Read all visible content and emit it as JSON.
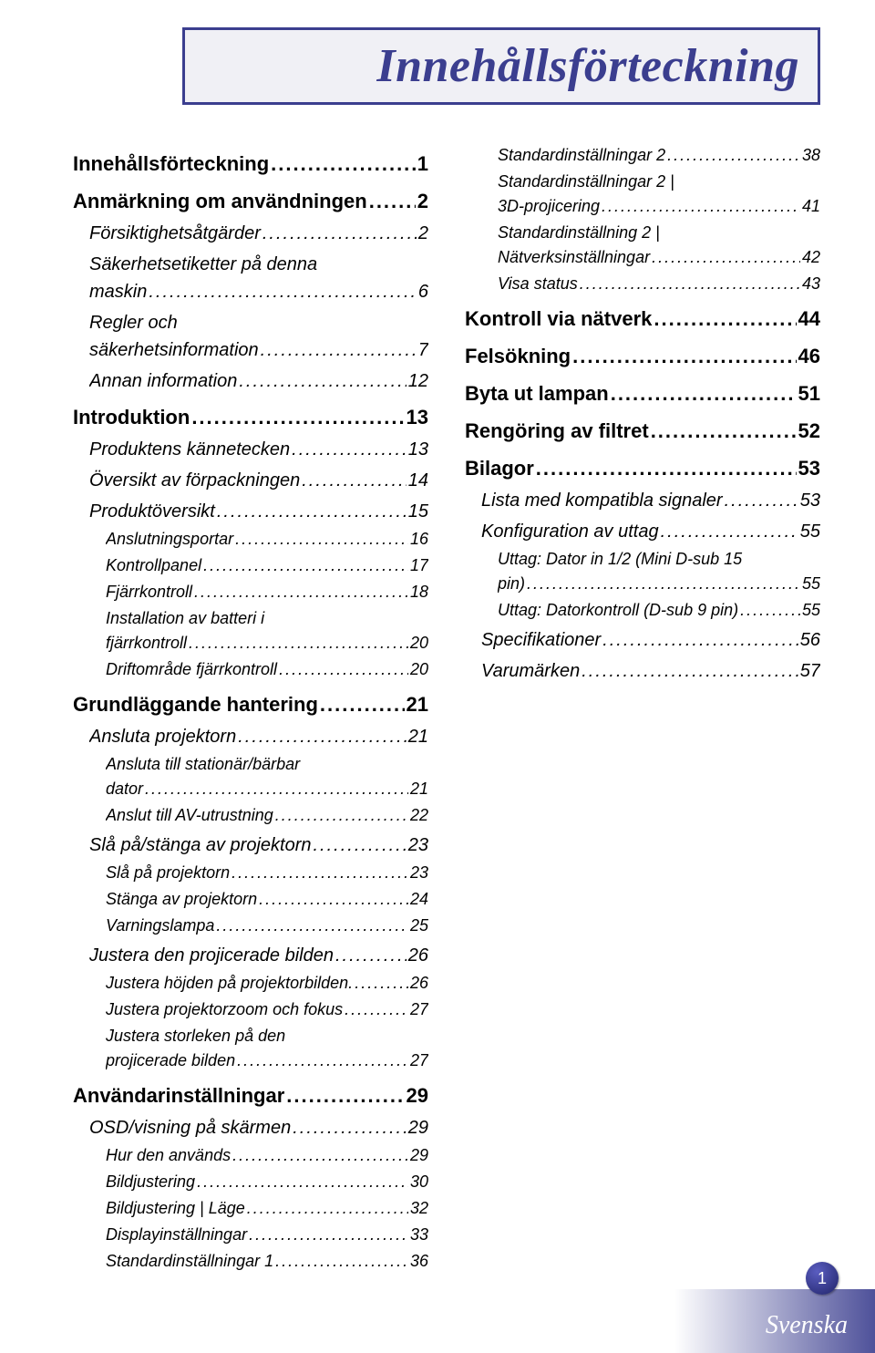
{
  "title": "Innehållsförteckning",
  "footer": {
    "language": "Svenska",
    "page_number": "1"
  },
  "colors": {
    "accent": "#3b3e8f",
    "title_box_bg": "#f0f0f5",
    "text": "#000000"
  },
  "typography": {
    "title_family": "Times New Roman, serif",
    "title_style": "italic bold",
    "title_size_pt": 39,
    "body_family": "Arial, sans-serif",
    "lvl1_size_pt": 17,
    "lvl1_weight": "bold",
    "lvl2_size_pt": 15,
    "lvl2_style": "italic",
    "lvl3_size_pt": 14,
    "lvl3_style": "italic"
  },
  "toc": {
    "left_column": [
      {
        "level": 1,
        "label": "Innehållsförteckning",
        "page": "1"
      },
      {
        "level": 1,
        "label": "Anmärkning om användningen",
        "page": "2"
      },
      {
        "level": 2,
        "label": "Försiktighetsåtgärder",
        "page": "2"
      },
      {
        "level": 2,
        "label": "Säkerhetsetiketter på denna maskin",
        "page": "6"
      },
      {
        "level": 2,
        "label": "Regler och säkerhetsinformation",
        "page": "7"
      },
      {
        "level": 2,
        "label": "Annan information",
        "page": "12"
      },
      {
        "level": 1,
        "label": "Introduktion",
        "page": "13"
      },
      {
        "level": 2,
        "label": "Produktens kännetecken",
        "page": "13"
      },
      {
        "level": 2,
        "label": "Översikt av förpackningen",
        "page": "14"
      },
      {
        "level": 2,
        "label": "Produktöversikt",
        "page": "15"
      },
      {
        "level": 3,
        "label": "Anslutningsportar",
        "page": "16"
      },
      {
        "level": 3,
        "label": "Kontrollpanel",
        "page": "17"
      },
      {
        "level": 3,
        "label": "Fjärrkontroll",
        "page": "18"
      },
      {
        "level": 3,
        "label": "Installation av batteri i fjärrkontroll",
        "page": "20"
      },
      {
        "level": 3,
        "label": "Driftområde fjärrkontroll",
        "page": "20"
      },
      {
        "level": 1,
        "label": "Grundläggande hantering",
        "page": "21"
      },
      {
        "level": 2,
        "label": "Ansluta projektorn",
        "page": "21"
      },
      {
        "level": 3,
        "label": "Ansluta till stationär/bärbar dator",
        "page": "21"
      },
      {
        "level": 3,
        "label": "Anslut till AV-utrustning",
        "page": "22"
      },
      {
        "level": 2,
        "label": "Slå på/stänga av projektorn",
        "page": "23"
      },
      {
        "level": 3,
        "label": "Slå på projektorn",
        "page": "23"
      },
      {
        "level": 3,
        "label": "Stänga av projektorn",
        "page": "24"
      },
      {
        "level": 3,
        "label": "Varningslampa",
        "page": "25"
      },
      {
        "level": 2,
        "label": "Justera den projicerade bilden",
        "page": "26"
      },
      {
        "level": 3,
        "label": "Justera höjden på projektorbilden.",
        "page": "26"
      },
      {
        "level": 3,
        "label": "Justera projektorzoom och fokus",
        "page": "27"
      },
      {
        "level": 3,
        "label": "Justera storleken på den projicerade bilden",
        "page": "27"
      },
      {
        "level": 1,
        "label": "Användarinställningar",
        "page": "29"
      },
      {
        "level": 2,
        "label": "OSD/visning på skärmen",
        "page": "29"
      },
      {
        "level": 3,
        "label": "Hur den används",
        "page": "29"
      },
      {
        "level": 3,
        "label": "Bildjustering",
        "page": "30"
      },
      {
        "level": 3,
        "label": "Bildjustering | Läge",
        "page": "32"
      },
      {
        "level": 3,
        "label": "Displayinställningar",
        "page": "33"
      },
      {
        "level": 3,
        "label": "Standardinställningar 1",
        "page": "36"
      }
    ],
    "right_column": [
      {
        "level": 3,
        "label": "Standardinställningar 2",
        "page": "38"
      },
      {
        "level": 3,
        "label": "Standardinställningar 2 | 3D-projicering",
        "page": "41"
      },
      {
        "level": 3,
        "label": "Standardinställning 2 | Nätverksinställningar",
        "page": "42"
      },
      {
        "level": 3,
        "label": "Visa status",
        "page": "43"
      },
      {
        "level": 1,
        "label": "Kontroll via nätverk",
        "page": "44"
      },
      {
        "level": 1,
        "label": "Felsökning",
        "page": "46"
      },
      {
        "level": 1,
        "label": "Byta ut lampan",
        "page": "51"
      },
      {
        "level": 1,
        "label": "Rengöring av filtret",
        "page": "52"
      },
      {
        "level": 1,
        "label": "Bilagor",
        "page": "53"
      },
      {
        "level": 2,
        "label": "Lista med kompatibla signaler",
        "page": "53"
      },
      {
        "level": 2,
        "label": "Konfiguration av uttag",
        "page": "55"
      },
      {
        "level": 3,
        "label": "Uttag: Dator in 1/2 (Mini D-sub 15 pin)",
        "page": "55",
        "leader": "."
      },
      {
        "level": 3,
        "label": "Uttag: Datorkontroll (D-sub 9 pin)",
        "page": "55"
      },
      {
        "level": 2,
        "label": "Specifikationer",
        "page": "56"
      },
      {
        "level": 2,
        "label": "Varumärken",
        "page": "57"
      }
    ]
  }
}
